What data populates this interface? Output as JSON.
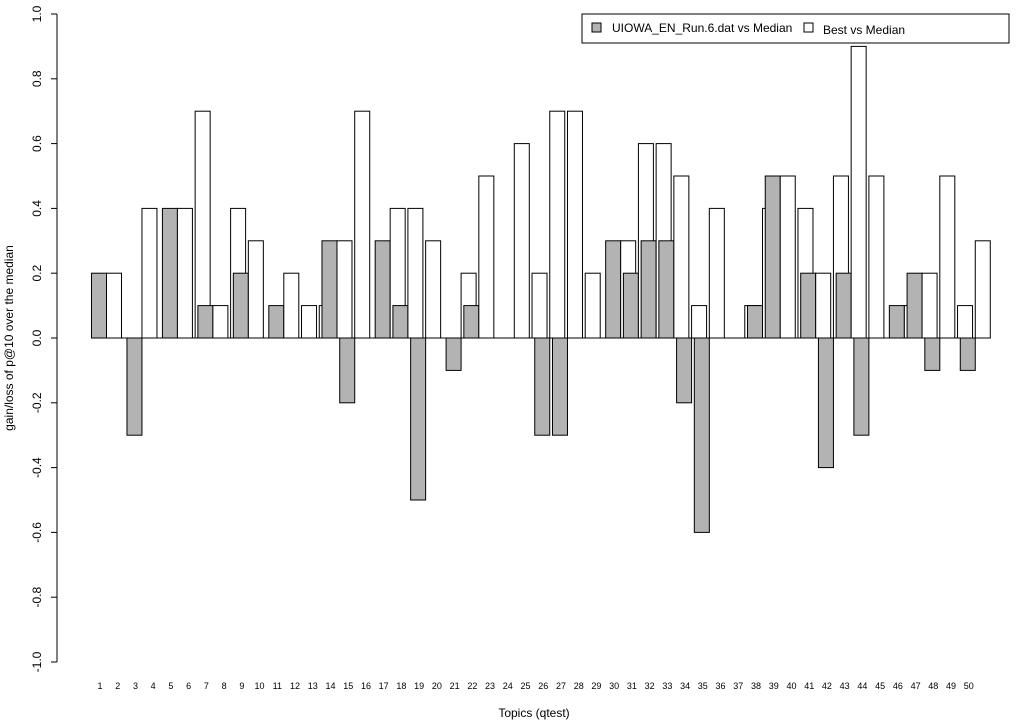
{
  "chart_data": {
    "type": "bar",
    "title": "",
    "xlabel": "Topics (qtest)",
    "ylabel": "gain/loss of p@10 over the median",
    "ylim": [
      -1.0,
      1.0
    ],
    "yticks": [
      "-1.0",
      "-0.8",
      "-0.6",
      "-0.4",
      "-0.2",
      "0.0",
      "0.2",
      "0.4",
      "0.6",
      "0.8",
      "1.0"
    ],
    "grid": false,
    "legend_position": "top-right",
    "categories": [
      "1",
      "2",
      "3",
      "4",
      "5",
      "6",
      "7",
      "8",
      "9",
      "10",
      "11",
      "12",
      "13",
      "14",
      "15",
      "16",
      "17",
      "18",
      "19",
      "20",
      "21",
      "22",
      "23",
      "24",
      "25",
      "26",
      "27",
      "28",
      "29",
      "30",
      "31",
      "32",
      "33",
      "34",
      "35",
      "36",
      "37",
      "38",
      "39",
      "40",
      "41",
      "42",
      "43",
      "44",
      "45",
      "46",
      "47",
      "48",
      "49",
      "50"
    ],
    "series": [
      {
        "name": "UIOWA_EN_Run.6.dat vs Median",
        "color": "#b3b3b3",
        "values": [
          0.2,
          0.0,
          -0.3,
          0.0,
          0.4,
          0.0,
          0.1,
          0.0,
          0.2,
          0.0,
          0.1,
          0.0,
          0.0,
          0.3,
          -0.2,
          0.0,
          0.3,
          0.1,
          -0.5,
          0.0,
          -0.1,
          0.1,
          0.0,
          0.0,
          0.0,
          -0.3,
          -0.3,
          0.0,
          0.0,
          0.3,
          0.2,
          0.3,
          0.3,
          -0.2,
          -0.6,
          0.0,
          0.0,
          0.1,
          0.5,
          0.0,
          0.2,
          -0.4,
          0.2,
          -0.3,
          0.0,
          0.1,
          0.2,
          -0.1,
          0.0,
          -0.1
        ]
      },
      {
        "name": "Best vs Median",
        "color": "#ffffff",
        "values": [
          0.2,
          0.0,
          0.4,
          0.0,
          0.4,
          0.7,
          0.1,
          0.4,
          0.3,
          0.0,
          0.2,
          0.1,
          0.1,
          0.3,
          0.7,
          0.0,
          0.4,
          0.4,
          0.3,
          0.0,
          0.2,
          0.5,
          0.0,
          0.6,
          0.2,
          0.7,
          0.7,
          0.2,
          0.0,
          0.3,
          0.6,
          0.6,
          0.5,
          0.1,
          0.4,
          0.0,
          0.1,
          0.4,
          0.5,
          0.4,
          0.2,
          0.5,
          0.9,
          0.5,
          0.0,
          0.1,
          0.2,
          0.5,
          0.1,
          0.3
        ]
      }
    ]
  }
}
